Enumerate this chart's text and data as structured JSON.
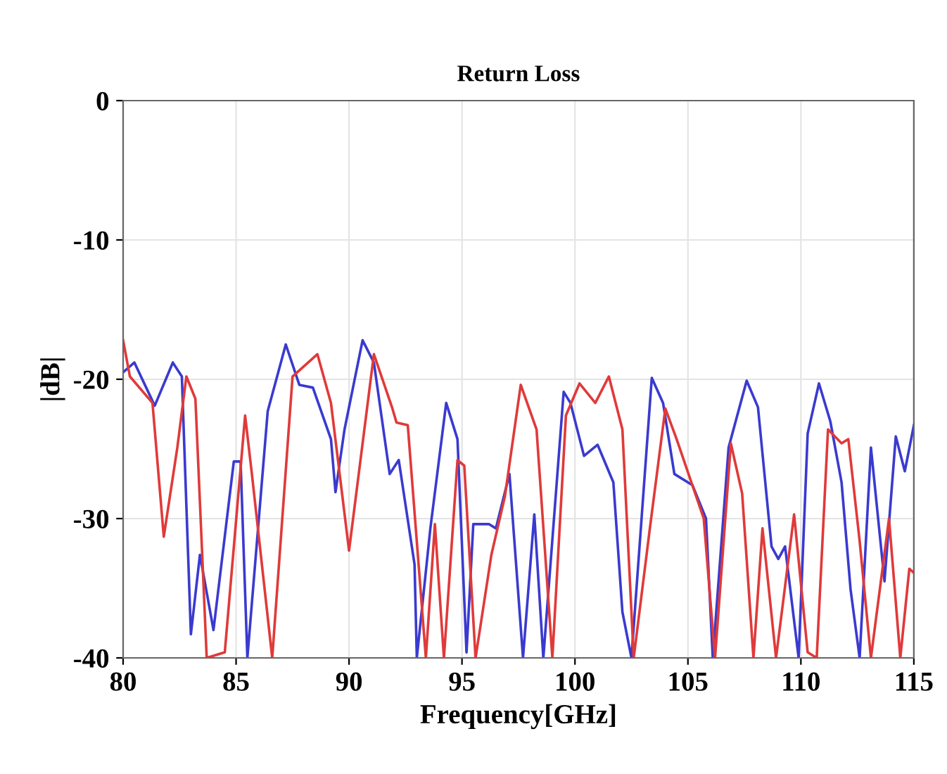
{
  "chart_data": {
    "type": "line",
    "title": "Return Loss",
    "xlabel": "Frequency[GHz]",
    "ylabel": "|dB|",
    "xlim": [
      80,
      115
    ],
    "ylim": [
      -40,
      0
    ],
    "xticks": [
      80,
      85,
      90,
      95,
      100,
      105,
      110,
      115
    ],
    "yticks": [
      -40,
      -30,
      -20,
      -10,
      0
    ],
    "grid": true,
    "series": [
      {
        "color": "#3a3ad0",
        "x": [
          80,
          80.5,
          81.4,
          82.2,
          82.6,
          83.0,
          83.4,
          84.0,
          84.9,
          85.2,
          85.5,
          86.4,
          87.2,
          87.8,
          88.4,
          89.2,
          89.4,
          89.8,
          90.6,
          91.1,
          91.8,
          92.2,
          92.9,
          93.0,
          93.6,
          94.3,
          94.8,
          95.2,
          95.5,
          96.2,
          96.5,
          97.1,
          97.7,
          98.2,
          98.6,
          99.5,
          99.8,
          100.4,
          101.0,
          101.7,
          102.1,
          102.5,
          103.4,
          103.9,
          104.4,
          105.2,
          105.8,
          106.1,
          106.8,
          107.6,
          108.1,
          108.7,
          109.0,
          109.3,
          109.9,
          110.3,
          110.8,
          111.3,
          111.8,
          112.2,
          112.6,
          113.1,
          113.7,
          114.2,
          114.6,
          115.0
        ],
        "values": [
          -19.5,
          -18.8,
          -21.9,
          -18.8,
          -19.8,
          -38.3,
          -32.6,
          -38,
          -25.9,
          -25.9,
          -40,
          -22.3,
          -17.5,
          -20.4,
          -20.6,
          -24.3,
          -28.1,
          -23.6,
          -17.2,
          -18.8,
          -26.8,
          -25.8,
          -33.3,
          -40,
          -30.7,
          -21.7,
          -24.3,
          -39.6,
          -30.4,
          -30.4,
          -30.7,
          -26.8,
          -40,
          -29.7,
          -40,
          -20.9,
          -21.7,
          -25.5,
          -24.7,
          -27.4,
          -36.7,
          -40,
          -19.9,
          -21.7,
          -26.8,
          -27.6,
          -30,
          -40,
          -24.9,
          -20.1,
          -22,
          -32,
          -32.9,
          -32,
          -40,
          -23.9,
          -20.3,
          -23,
          -27.4,
          -35.1,
          -40,
          -24.9,
          -34.5,
          -24.1,
          -26.6,
          -23.3
        ]
      },
      {
        "color": "#e03a3a",
        "x": [
          80,
          80.3,
          81.3,
          81.8,
          82.4,
          82.8,
          83.2,
          83.7,
          84.5,
          85.4,
          85.7,
          86.6,
          87.5,
          88.6,
          89.2,
          90.0,
          91.1,
          91.9,
          92.1,
          92.6,
          93.4,
          93.8,
          94.2,
          94.8,
          95.1,
          95.6,
          96.3,
          96.9,
          97.6,
          98.3,
          99.0,
          99.6,
          100.2,
          100.9,
          101.5,
          102.1,
          102.6,
          103.3,
          104.0,
          104.5,
          105.7,
          106.2,
          106.9,
          107.4,
          107.9,
          108.3,
          108.9,
          109.7,
          110.3,
          110.7,
          111.2,
          111.8,
          112.1,
          112.6,
          113.1,
          113.9,
          114.4,
          114.8,
          115.0
        ],
        "values": [
          -17.2,
          -19.8,
          -21.7,
          -31.3,
          -24.9,
          -19.8,
          -21.4,
          -40,
          -39.6,
          -22.6,
          -26.8,
          -40,
          -19.8,
          -18.2,
          -21.7,
          -32.3,
          -18.2,
          -22,
          -23.1,
          -23.3,
          -40,
          -30.4,
          -40,
          -25.8,
          -26.2,
          -40,
          -32.6,
          -28.4,
          -20.4,
          -23.6,
          -40,
          -22.6,
          -20.3,
          -21.7,
          -19.8,
          -23.6,
          -40,
          -30.9,
          -22.1,
          -24.3,
          -30,
          -40,
          -24.6,
          -28.2,
          -40,
          -30.7,
          -40,
          -29.7,
          -39.6,
          -40,
          -23.6,
          -24.6,
          -24.3,
          -31.6,
          -40,
          -30,
          -40,
          -33.6,
          -33.9
        ]
      }
    ]
  }
}
